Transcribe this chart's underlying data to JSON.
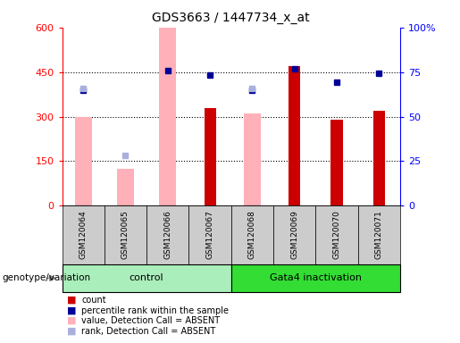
{
  "title": "GDS3663 / 1447734_x_at",
  "samples": [
    "GSM120064",
    "GSM120065",
    "GSM120066",
    "GSM120067",
    "GSM120068",
    "GSM120069",
    "GSM120070",
    "GSM120071"
  ],
  "count_bars": {
    "GSM120064": null,
    "GSM120065": null,
    "GSM120066": null,
    "GSM120067": 330,
    "GSM120068": null,
    "GSM120069": 470,
    "GSM120070": 290,
    "GSM120071": 320
  },
  "pink_bars": {
    "GSM120064": 300,
    "GSM120065": 125,
    "GSM120066": 600,
    "GSM120067": null,
    "GSM120068": 310,
    "GSM120069": null,
    "GSM120070": null,
    "GSM120071": null
  },
  "blue_squares": {
    "GSM120064": 390,
    "GSM120065": null,
    "GSM120066": 455,
    "GSM120067": 440,
    "GSM120068": 390,
    "GSM120069": 460,
    "GSM120070": 415,
    "GSM120071": 445
  },
  "light_blue_squares": {
    "GSM120064": 395,
    "GSM120065": 170,
    "GSM120066": null,
    "GSM120067": null,
    "GSM120068": 395,
    "GSM120069": null,
    "GSM120070": null,
    "GSM120071": null
  },
  "ylim_left": [
    0,
    600
  ],
  "ylim_right": [
    0,
    100
  ],
  "yticks_left": [
    0,
    150,
    300,
    450,
    600
  ],
  "yticks_right": [
    0,
    25,
    50,
    75,
    100
  ],
  "red_color": "#cc0000",
  "pink_color": "#ffb0b8",
  "blue_color": "#000099",
  "light_blue_color": "#aab0dd",
  "control_color": "#aaeebb",
  "gata4_color": "#33dd33",
  "gray_color": "#cccccc",
  "legend_items": [
    {
      "label": "count",
      "color": "#cc0000"
    },
    {
      "label": "percentile rank within the sample",
      "color": "#000099"
    },
    {
      "label": "value, Detection Call = ABSENT",
      "color": "#ffb0b8"
    },
    {
      "label": "rank, Detection Call = ABSENT",
      "color": "#aab0dd"
    }
  ],
  "groups": [
    {
      "label": "control",
      "start": 0,
      "end": 4,
      "color": "#aaeebb"
    },
    {
      "label": "Gata4 inactivation",
      "start": 4,
      "end": 8,
      "color": "#33dd33"
    }
  ]
}
